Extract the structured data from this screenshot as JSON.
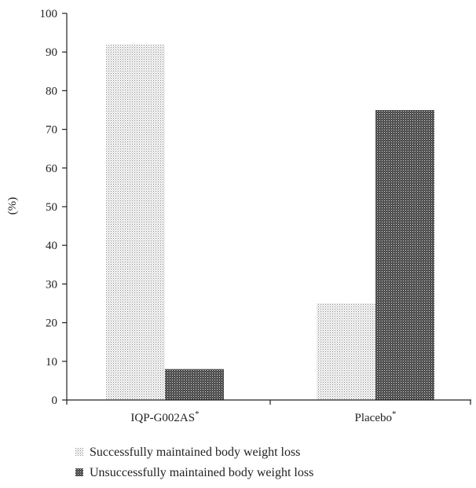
{
  "chart_data": {
    "type": "bar",
    "ylabel": "(%)",
    "ylim": [
      0,
      100
    ],
    "yticks": [
      0,
      10,
      20,
      30,
      40,
      50,
      60,
      70,
      80,
      90,
      100
    ],
    "grid": false,
    "legend_position": "bottom-left",
    "categories": [
      {
        "label": "IQP-G002AS",
        "marker": "*"
      },
      {
        "label": "Placebo",
        "marker": "*"
      }
    ],
    "series": [
      {
        "name": "Successfully maintained body weight loss",
        "pattern": "light-dots",
        "values": [
          92,
          25
        ]
      },
      {
        "name": "Unsuccessfully maintained body weight loss",
        "pattern": "dark-crosshatch",
        "values": [
          8,
          75
        ]
      }
    ]
  }
}
